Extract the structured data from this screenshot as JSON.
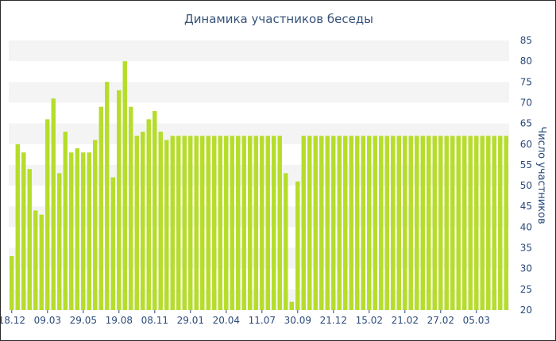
{
  "chart_data": {
    "type": "bar",
    "title": "Динамика участников беседы",
    "xlabel": "",
    "ylabel": "Число участников",
    "ylim": [
      20,
      85
    ],
    "yticks": [
      20,
      25,
      30,
      35,
      40,
      45,
      50,
      55,
      60,
      65,
      70,
      75,
      80,
      85
    ],
    "y_axis_position": "right",
    "grid_bands": true,
    "colors": {
      "bar": "#b5dd2a",
      "band": "#f4f4f4",
      "text": "#2b4a7a"
    },
    "x_tick_labels": [
      {
        "index": 0,
        "label": "18.12"
      },
      {
        "index": 6,
        "label": "09.03"
      },
      {
        "index": 12,
        "label": "29.05"
      },
      {
        "index": 18,
        "label": "19.08"
      },
      {
        "index": 24,
        "label": "08.11"
      },
      {
        "index": 30,
        "label": "29.01"
      },
      {
        "index": 36,
        "label": "20.04"
      },
      {
        "index": 42,
        "label": "11.07"
      },
      {
        "index": 48,
        "label": "30.09"
      },
      {
        "index": 54,
        "label": "21.12"
      },
      {
        "index": 60,
        "label": "15.02"
      },
      {
        "index": 66,
        "label": "21.02"
      },
      {
        "index": 72,
        "label": "27.02"
      },
      {
        "index": 78,
        "label": "05.03"
      }
    ],
    "values": [
      33,
      60,
      58,
      54,
      44,
      43,
      66,
      71,
      53,
      63,
      58,
      59,
      58,
      58,
      61,
      69,
      75,
      52,
      73,
      80,
      69,
      62,
      63,
      66,
      68,
      63,
      61,
      62,
      62,
      62,
      62,
      62,
      62,
      62,
      62,
      62,
      62,
      62,
      62,
      62,
      62,
      62,
      62,
      62,
      62,
      62,
      53,
      22,
      51,
      62,
      62,
      62,
      62,
      62,
      62,
      62,
      62,
      62,
      62,
      62,
      62,
      62,
      62,
      62,
      62,
      62,
      62,
      62,
      62,
      62,
      62,
      62,
      62,
      62,
      62,
      62,
      62,
      62,
      62,
      62,
      62,
      62,
      62,
      62
    ]
  }
}
